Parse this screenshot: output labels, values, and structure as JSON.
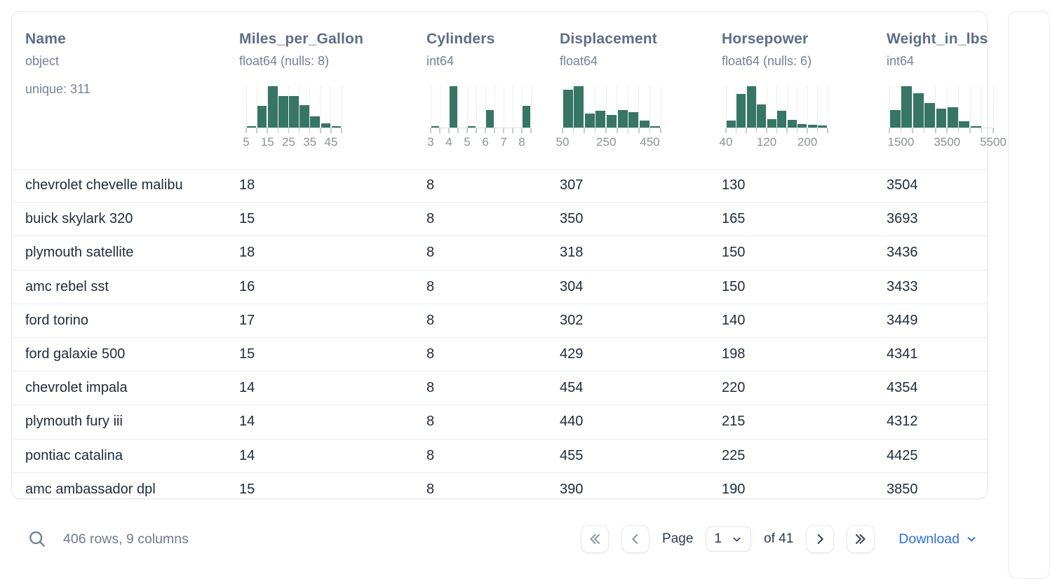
{
  "colors": {
    "histogram_bar": "#377565",
    "download_link": "#2c6ee0",
    "header_text": "#5d6d89",
    "cell_text": "#1f2a3c"
  },
  "table": {
    "columns": [
      {
        "name": "Name",
        "dtype": "object",
        "extra": "unique: 311"
      },
      {
        "name": "Miles_per_Gallon",
        "dtype": "float64 (nulls: 8)",
        "histogram": {
          "type": "bar",
          "bin_start": 5,
          "bin_size": 5,
          "bars": [
            3,
            52,
            100,
            77,
            77,
            54,
            27,
            10,
            3
          ],
          "tick_labels": [
            {
              "i": 0,
              "t": "5"
            },
            {
              "i": 2,
              "t": "15"
            },
            {
              "i": 4,
              "t": "25"
            },
            {
              "i": 6,
              "t": "35"
            },
            {
              "i": 8,
              "t": "45"
            }
          ]
        }
      },
      {
        "name": "Cylinders",
        "dtype": "int64",
        "histogram": {
          "type": "bar",
          "bin_start": 3,
          "bin_size": 0.5,
          "bars": [
            3,
            0,
            100,
            0,
            3,
            0,
            42,
            0,
            0,
            0,
            52
          ],
          "tick_labels": [
            {
              "i": 0,
              "t": "3"
            },
            {
              "i": 2,
              "t": "4"
            },
            {
              "i": 4,
              "t": "5"
            },
            {
              "i": 6,
              "t": "6"
            },
            {
              "i": 8,
              "t": "7"
            },
            {
              "i": 10,
              "t": "8"
            }
          ]
        }
      },
      {
        "name": "Displacement",
        "dtype": "float64",
        "histogram": {
          "type": "bar",
          "bin_start": 50,
          "bin_size": 50,
          "bars": [
            92,
            100,
            34,
            41,
            30,
            43,
            37,
            17,
            4
          ],
          "tick_labels": [
            {
              "i": 0,
              "t": "50"
            },
            {
              "i": 4,
              "t": "250"
            },
            {
              "i": 8,
              "t": "450"
            }
          ]
        }
      },
      {
        "name": "Horsepower",
        "dtype": "float64 (nulls: 6)",
        "histogram": {
          "type": "bar",
          "bin_start": 40,
          "bin_size": 20,
          "bars": [
            17,
            82,
            100,
            56,
            21,
            40,
            19,
            9,
            6,
            5
          ],
          "tick_labels": [
            {
              "i": 0,
              "t": "40"
            },
            {
              "i": 4,
              "t": "120"
            },
            {
              "i": 8,
              "t": "200"
            }
          ]
        }
      },
      {
        "name": "Weight_in_lbs",
        "dtype": "int64",
        "histogram": {
          "type": "bar",
          "bin_start": 1000,
          "bin_size": 500,
          "bars": [
            42,
            100,
            83,
            59,
            45,
            49,
            15,
            3,
            0
          ],
          "tick_labels": [
            {
              "i": 1,
              "t": "1500"
            },
            {
              "i": 5,
              "t": "3500"
            },
            {
              "i": 9,
              "t": "5500"
            }
          ]
        }
      }
    ],
    "rows": [
      [
        "chevrolet chevelle malibu",
        "18",
        "8",
        "307",
        "130",
        "3504"
      ],
      [
        "buick skylark 320",
        "15",
        "8",
        "350",
        "165",
        "3693"
      ],
      [
        "plymouth satellite",
        "18",
        "8",
        "318",
        "150",
        "3436"
      ],
      [
        "amc rebel sst",
        "16",
        "8",
        "304",
        "150",
        "3433"
      ],
      [
        "ford torino",
        "17",
        "8",
        "302",
        "140",
        "3449"
      ],
      [
        "ford galaxie 500",
        "15",
        "8",
        "429",
        "198",
        "4341"
      ],
      [
        "chevrolet impala",
        "14",
        "8",
        "454",
        "220",
        "4354"
      ],
      [
        "plymouth fury iii",
        "14",
        "8",
        "440",
        "215",
        "4312"
      ],
      [
        "pontiac catalina",
        "14",
        "8",
        "455",
        "225",
        "4425"
      ],
      [
        "amc ambassador dpl",
        "15",
        "8",
        "390",
        "190",
        "3850"
      ]
    ]
  },
  "footer": {
    "row_count_label": "406 rows, 9 columns",
    "page_label": "Page",
    "page_value": "1",
    "of_label": "of 41",
    "download_label": "Download"
  }
}
